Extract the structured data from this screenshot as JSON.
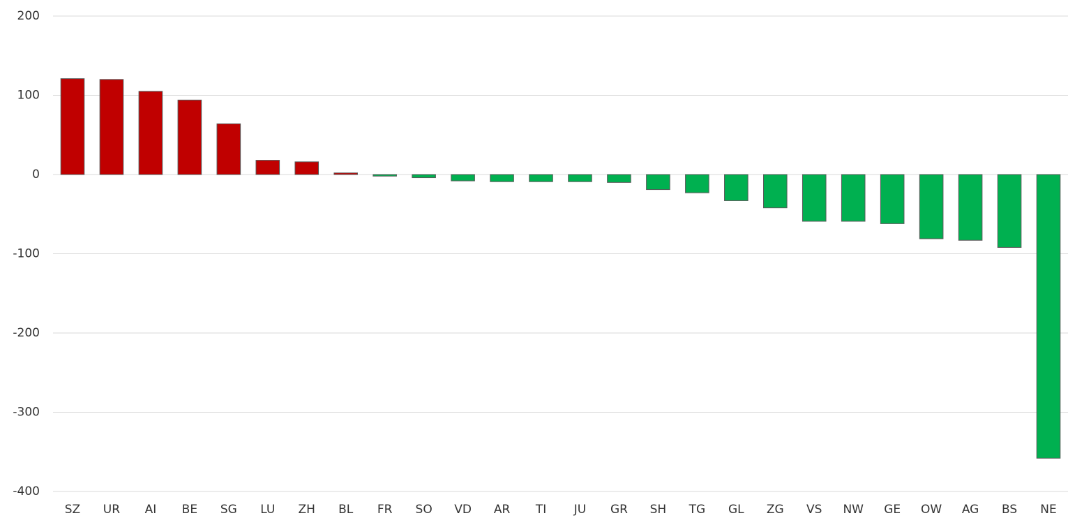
{
  "chart_data": {
    "type": "bar",
    "categories": [
      "SZ",
      "UR",
      "AI",
      "BE",
      "SG",
      "LU",
      "ZH",
      "BL",
      "FR",
      "SO",
      "VD",
      "AR",
      "TI",
      "JU",
      "GR",
      "SH",
      "TG",
      "GL",
      "ZG",
      "VS",
      "NW",
      "GE",
      "OW",
      "AG",
      "BS",
      "NE"
    ],
    "values": [
      121,
      120,
      105,
      94,
      64,
      18,
      16,
      2,
      -2,
      -4,
      -8,
      -9,
      -9,
      -9,
      -10,
      -19,
      -23,
      -33,
      -42,
      -59,
      -59,
      -62,
      -81,
      -83,
      -92,
      -358
    ],
    "positive_color": "#c00000",
    "negative_color": "#00b050",
    "ylim": [
      -400,
      200
    ],
    "yticks": [
      -400,
      -300,
      -200,
      -100,
      0,
      100,
      200
    ],
    "grid": true
  }
}
